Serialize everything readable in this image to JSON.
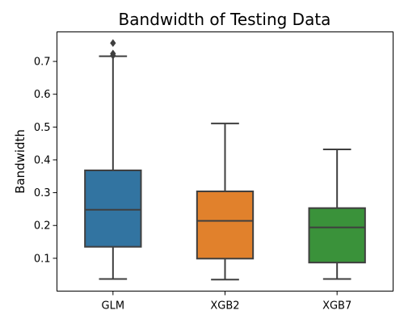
{
  "chart_data": {
    "type": "box",
    "title": "Bandwidth of Testing Data",
    "xlabel": "",
    "ylabel": "Bandwidth",
    "ylim": [
      0.0,
      0.79
    ],
    "yticks": [
      0.1,
      0.2,
      0.3,
      0.4,
      0.5,
      0.6,
      0.7
    ],
    "ytick_labels": [
      "0.1",
      "0.2",
      "0.3",
      "0.4",
      "0.5",
      "0.6",
      "0.7"
    ],
    "categories": [
      "GLM",
      "XGB2",
      "XGB7"
    ],
    "boxes": [
      {
        "category": "GLM",
        "whisker_low": 0.037,
        "q1": 0.135,
        "median": 0.248,
        "q3": 0.368,
        "whisker_high": 0.716,
        "outliers": [
          0.718,
          0.724,
          0.756
        ],
        "color": "#3274a1"
      },
      {
        "category": "XGB2",
        "whisker_low": 0.035,
        "q1": 0.099,
        "median": 0.214,
        "q3": 0.304,
        "whisker_high": 0.511,
        "outliers": [],
        "color": "#e1812c"
      },
      {
        "category": "XGB7",
        "whisker_low": 0.037,
        "q1": 0.087,
        "median": 0.194,
        "q3": 0.253,
        "whisker_high": 0.432,
        "outliers": [],
        "color": "#3a923a"
      }
    ],
    "grid": false,
    "legend": "none"
  }
}
